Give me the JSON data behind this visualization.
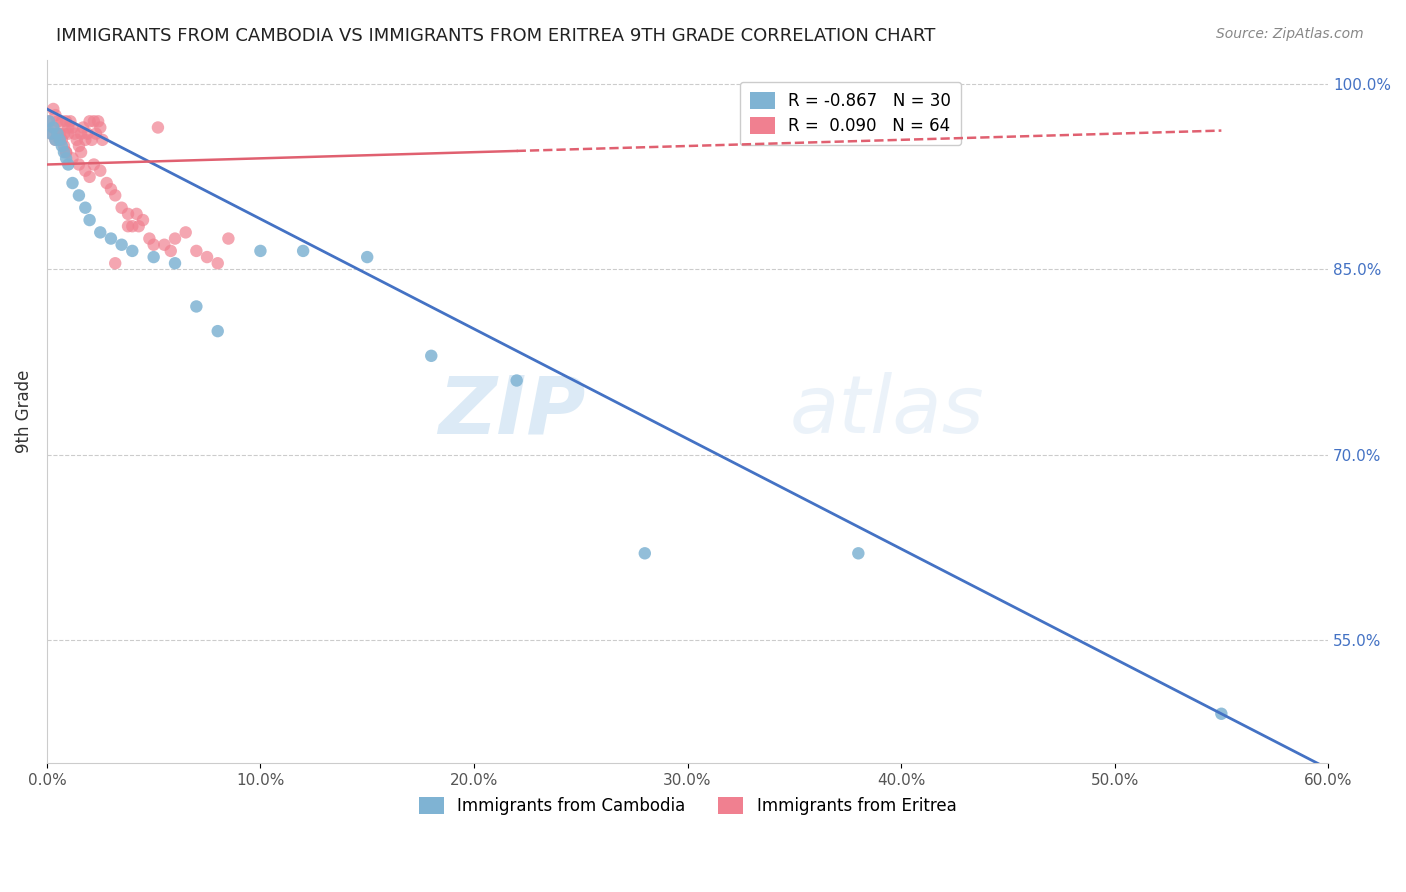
{
  "title": "IMMIGRANTS FROM CAMBODIA VS IMMIGRANTS FROM ERITREA 9TH GRADE CORRELATION CHART",
  "source": "Source: ZipAtlas.com",
  "ylabel_left": "9th Grade",
  "legend_entries": [
    {
      "label": "R = -0.867   N = 30",
      "color": "#a8c4e0"
    },
    {
      "label": "R =  0.090   N = 64",
      "color": "#f4a0b0"
    }
  ],
  "legend_labels_bottom": [
    "Immigrants from Cambodia",
    "Immigrants from Eritrea"
  ],
  "right_yticks": [
    1.0,
    0.85,
    0.7,
    0.55
  ],
  "right_yticklabels": [
    "100.0%",
    "85.0%",
    "70.0%",
    "55.0%"
  ],
  "xlim": [
    0.0,
    0.6
  ],
  "ylim": [
    0.45,
    1.02
  ],
  "blue_color": "#7FB3D3",
  "pink_color": "#F08090",
  "blue_line_color": "#4472C4",
  "pink_line_color": "#E06070",
  "watermark_zip": "ZIP",
  "watermark_atlas": "atlas",
  "cambodia_x": [
    0.001,
    0.002,
    0.003,
    0.004,
    0.005,
    0.006,
    0.007,
    0.008,
    0.009,
    0.01,
    0.012,
    0.015,
    0.018,
    0.02,
    0.025,
    0.03,
    0.035,
    0.04,
    0.05,
    0.06,
    0.07,
    0.08,
    0.1,
    0.12,
    0.15,
    0.18,
    0.22,
    0.28,
    0.38,
    0.55
  ],
  "cambodia_y": [
    0.97,
    0.96,
    0.965,
    0.955,
    0.96,
    0.955,
    0.95,
    0.945,
    0.94,
    0.935,
    0.92,
    0.91,
    0.9,
    0.89,
    0.88,
    0.875,
    0.87,
    0.865,
    0.86,
    0.855,
    0.82,
    0.8,
    0.865,
    0.865,
    0.86,
    0.78,
    0.76,
    0.62,
    0.62,
    0.49
  ],
  "eritrea_x": [
    0.001,
    0.002,
    0.003,
    0.004,
    0.005,
    0.006,
    0.007,
    0.008,
    0.009,
    0.01,
    0.012,
    0.015,
    0.016,
    0.018,
    0.02,
    0.022,
    0.025,
    0.028,
    0.03,
    0.032,
    0.035,
    0.038,
    0.04,
    0.042,
    0.045,
    0.048,
    0.05,
    0.055,
    0.058,
    0.06,
    0.065,
    0.07,
    0.075,
    0.08,
    0.085,
    0.009,
    0.003,
    0.004,
    0.005,
    0.006,
    0.007,
    0.008,
    0.009,
    0.01,
    0.011,
    0.012,
    0.013,
    0.014,
    0.015,
    0.016,
    0.017,
    0.018,
    0.019,
    0.02,
    0.021,
    0.022,
    0.023,
    0.024,
    0.025,
    0.026,
    0.032,
    0.038,
    0.043,
    0.052
  ],
  "eritrea_y": [
    0.97,
    0.96,
    0.965,
    0.955,
    0.97,
    0.96,
    0.955,
    0.95,
    0.945,
    0.96,
    0.94,
    0.935,
    0.945,
    0.93,
    0.925,
    0.935,
    0.93,
    0.92,
    0.915,
    0.91,
    0.9,
    0.895,
    0.885,
    0.895,
    0.89,
    0.875,
    0.87,
    0.87,
    0.865,
    0.875,
    0.88,
    0.865,
    0.86,
    0.855,
    0.875,
    0.945,
    0.98,
    0.975,
    0.96,
    0.955,
    0.97,
    0.96,
    0.97,
    0.965,
    0.97,
    0.965,
    0.96,
    0.955,
    0.95,
    0.96,
    0.965,
    0.955,
    0.96,
    0.97,
    0.955,
    0.97,
    0.96,
    0.97,
    0.965,
    0.955,
    0.855,
    0.885,
    0.885,
    0.965
  ]
}
